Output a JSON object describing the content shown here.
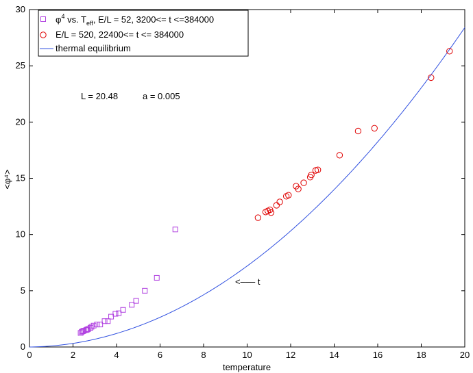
{
  "chart_data": {
    "type": "scatter",
    "xlabel": "temperature",
    "ylabel": "<φ⁴>",
    "xlim": [
      0,
      20
    ],
    "ylim": [
      0,
      30
    ],
    "xticks": [
      "0",
      "2",
      "4",
      "6",
      "8",
      "10",
      "12",
      "14",
      "16",
      "18",
      "20"
    ],
    "yticks": [
      "0",
      "5",
      "10",
      "15",
      "20",
      "25",
      "30"
    ],
    "grid": false,
    "legend_position": "top-left",
    "annotations": [
      "L = 20.48",
      "a = 0.005",
      "<––– t"
    ],
    "series": [
      {
        "name": "φ⁴ vs. T_eff , E/L = 52, 3200<= t <=384000",
        "legend_parts": {
          "pre": "φ",
          "sup1": "4",
          "mid": " vs. T",
          "sub": "eff",
          "post": ", E/L = 52, 3200<= t <=384000"
        },
        "marker": "square",
        "color": "#b040e0",
        "points": [
          [
            2.35,
            1.25
          ],
          [
            2.4,
            1.35
          ],
          [
            2.45,
            1.4
          ],
          [
            2.5,
            1.45
          ],
          [
            2.6,
            1.5
          ],
          [
            2.65,
            1.55
          ],
          [
            2.7,
            1.6
          ],
          [
            2.8,
            1.7
          ],
          [
            2.85,
            1.8
          ],
          [
            2.95,
            1.9
          ],
          [
            3.1,
            2.0
          ],
          [
            3.25,
            2.0
          ],
          [
            3.45,
            2.3
          ],
          [
            3.6,
            2.3
          ],
          [
            3.75,
            2.7
          ],
          [
            3.95,
            2.95
          ],
          [
            4.1,
            3.0
          ],
          [
            4.3,
            3.3
          ],
          [
            4.7,
            3.75
          ],
          [
            4.9,
            4.1
          ],
          [
            5.3,
            5.0
          ],
          [
            5.85,
            6.15
          ],
          [
            6.7,
            10.45
          ]
        ]
      },
      {
        "name": "E/L = 520, 22400<= t <= 384000",
        "marker": "circle",
        "color": "#e00000",
        "points": [
          [
            10.5,
            11.5
          ],
          [
            10.85,
            12.0
          ],
          [
            10.95,
            12.1
          ],
          [
            11.05,
            12.2
          ],
          [
            11.1,
            11.95
          ],
          [
            11.35,
            12.6
          ],
          [
            11.5,
            12.9
          ],
          [
            11.8,
            13.4
          ],
          [
            11.9,
            13.5
          ],
          [
            12.25,
            14.3
          ],
          [
            12.35,
            14.05
          ],
          [
            12.6,
            14.6
          ],
          [
            12.9,
            15.1
          ],
          [
            12.95,
            15.3
          ],
          [
            13.15,
            15.7
          ],
          [
            13.25,
            15.75
          ],
          [
            14.25,
            17.05
          ],
          [
            15.1,
            19.2
          ],
          [
            15.85,
            19.45
          ],
          [
            18.45,
            23.95
          ],
          [
            19.3,
            26.3
          ]
        ]
      },
      {
        "name": "thermal equilibrium",
        "marker": "line",
        "color": "#3050e0"
      }
    ]
  }
}
